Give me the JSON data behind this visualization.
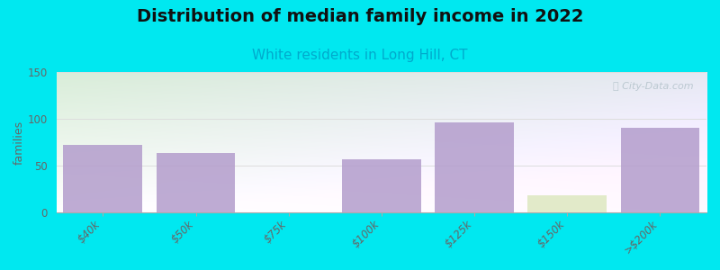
{
  "title": "Distribution of median family income in 2022",
  "subtitle": "White residents in Long Hill, CT",
  "categories": [
    "$40k",
    "$50k",
    "$75k",
    "$100k",
    "$125k",
    "$150k",
    ">$200k"
  ],
  "values": [
    72,
    63,
    0,
    57,
    96,
    18,
    90
  ],
  "bar_colors": [
    "#b39dcc",
    "#b39dcc",
    "#dde8c0",
    "#b39dcc",
    "#b39dcc",
    "#dde8c0",
    "#b39dcc"
  ],
  "ylabel": "families",
  "ylim": [
    0,
    150
  ],
  "yticks": [
    0,
    50,
    100,
    150
  ],
  "background_color": "#00e8f0",
  "plot_bg_gradient_tl": "#d8efd0",
  "plot_bg_gradient_tr": "#e8f4f0",
  "plot_bg_bottom": "#ffffff",
  "title_fontsize": 14,
  "subtitle_fontsize": 11,
  "subtitle_color": "#00aacc",
  "watermark": "ⓘ City-Data.com",
  "bar_width": 0.85,
  "tick_label_color": "#666666",
  "grid_color": "#dddddd"
}
